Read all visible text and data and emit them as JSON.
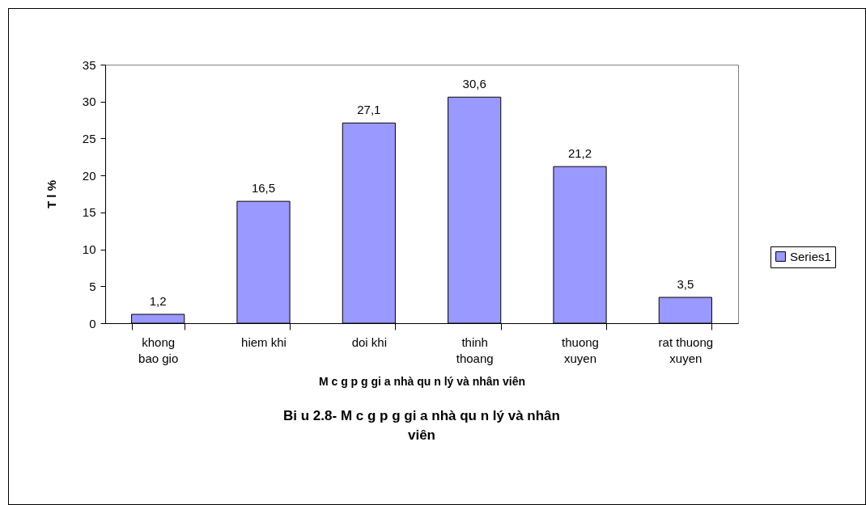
{
  "chart_data": {
    "type": "bar",
    "title": "Bi u 2.8- M c   g p g   gi a nhà qu n lý và nhân viên",
    "xlabel": "M c   g p g   gi a nhà qu n lý và nhân viên",
    "ylabel": "T l %",
    "categories": [
      "khong\nbao gio",
      "hiem khi",
      "doi khi",
      "thinh\nthoang",
      "thuong\nxuyen",
      "rat thuong\nxuyen"
    ],
    "series": [
      {
        "name": "Series1",
        "color": "#9999ff",
        "values": [
          1.2,
          16.5,
          27.1,
          30.6,
          21.2,
          3.5
        ]
      }
    ],
    "value_labels": [
      "1,2",
      "16,5",
      "27,1",
      "30,6",
      "21,2",
      "3,5"
    ],
    "ylim": [
      0,
      35
    ],
    "yticks": [
      0,
      5,
      10,
      15,
      20,
      25,
      30,
      35
    ],
    "grid": false,
    "legend": "right"
  }
}
